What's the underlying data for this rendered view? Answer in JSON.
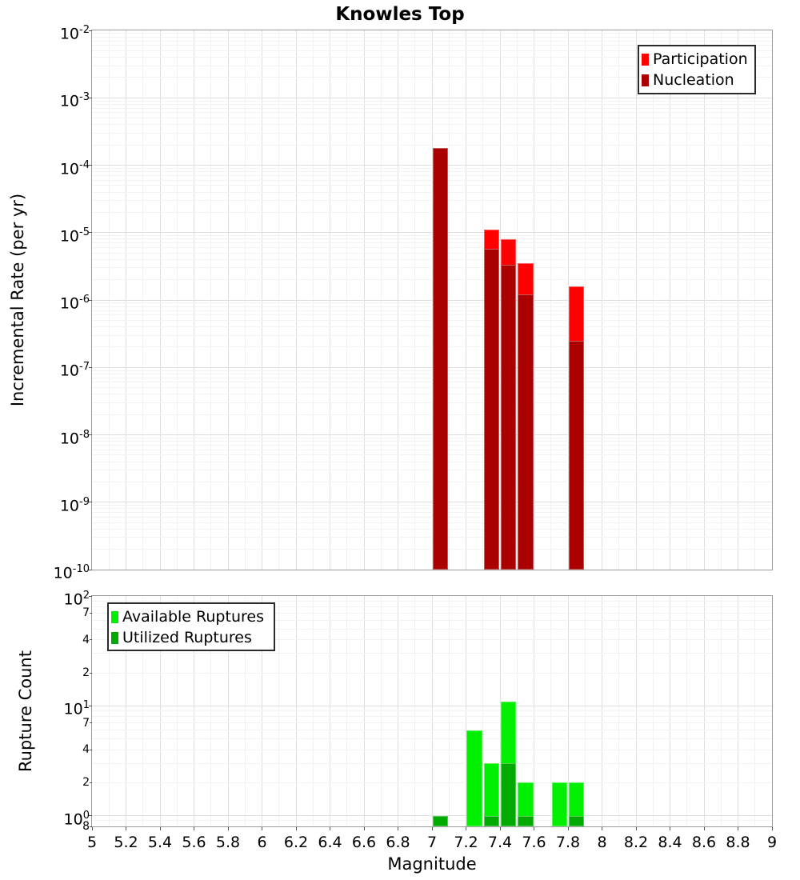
{
  "chart_data": [
    {
      "type": "bar",
      "panel": "incremental-rate",
      "title": "Knowles Top",
      "ylabel": "Incremental Rate (per yr)",
      "xlim": [
        5,
        9
      ],
      "ylim": [
        1e-10,
        0.01
      ],
      "yscale": "log",
      "grid": true,
      "legend_position": "top-right",
      "y_tick_exponents": [
        -2,
        -3,
        -4,
        -5,
        -6,
        -7,
        -8,
        -9,
        -10
      ],
      "bin_width": 0.092,
      "series": [
        {
          "name": "Participation",
          "color": "#ff0000",
          "x": [
            7.05,
            7.35,
            7.45,
            7.55,
            7.85
          ],
          "y": [
            0.00018,
            1.1e-05,
            7.9e-06,
            3.5e-06,
            1.6e-06
          ]
        },
        {
          "name": "Nucleation",
          "color": "#aa0000",
          "x": [
            7.05,
            7.35,
            7.45,
            7.55,
            7.85
          ],
          "y": [
            0.00018,
            5.8e-06,
            3.3e-06,
            1.2e-06,
            2.5e-07
          ]
        }
      ]
    },
    {
      "type": "bar",
      "panel": "rupture-count",
      "ylabel": "Rupture Count",
      "xlabel": "Magnitude",
      "xlim": [
        5,
        9
      ],
      "ylim": [
        0.8,
        100
      ],
      "yscale": "log",
      "grid": true,
      "legend_position": "top-left",
      "y_major_tick_exponents": [
        2,
        1,
        0
      ],
      "y_minor_ticks": [
        {
          "value": 70,
          "label": "7"
        },
        {
          "value": 40,
          "label": "4"
        },
        {
          "value": 20,
          "label": "2"
        },
        {
          "value": 7,
          "label": "7"
        },
        {
          "value": 4,
          "label": "4"
        },
        {
          "value": 2,
          "label": "2"
        },
        {
          "value": 0.8,
          "label": "8"
        }
      ],
      "x_tick_labels": [
        "5",
        "5.2",
        "5.4",
        "5.6",
        "5.8",
        "6",
        "6.2",
        "6.4",
        "6.6",
        "6.8",
        "7",
        "7.2",
        "7.4",
        "7.6",
        "7.8",
        "8",
        "8.2",
        "8.4",
        "8.6",
        "8.8",
        "9"
      ],
      "bin_width": 0.092,
      "series": [
        {
          "name": "Available Ruptures",
          "color": "#00ee00",
          "x": [
            7.05,
            7.25,
            7.35,
            7.45,
            7.55,
            7.75,
            7.85
          ],
          "y": [
            1,
            6,
            3,
            11,
            2,
            2,
            2
          ]
        },
        {
          "name": "Utilized Ruptures",
          "color": "#00aa00",
          "x": [
            7.05,
            7.35,
            7.45,
            7.55,
            7.85
          ],
          "y": [
            1,
            1,
            3,
            1,
            1
          ]
        }
      ]
    }
  ]
}
